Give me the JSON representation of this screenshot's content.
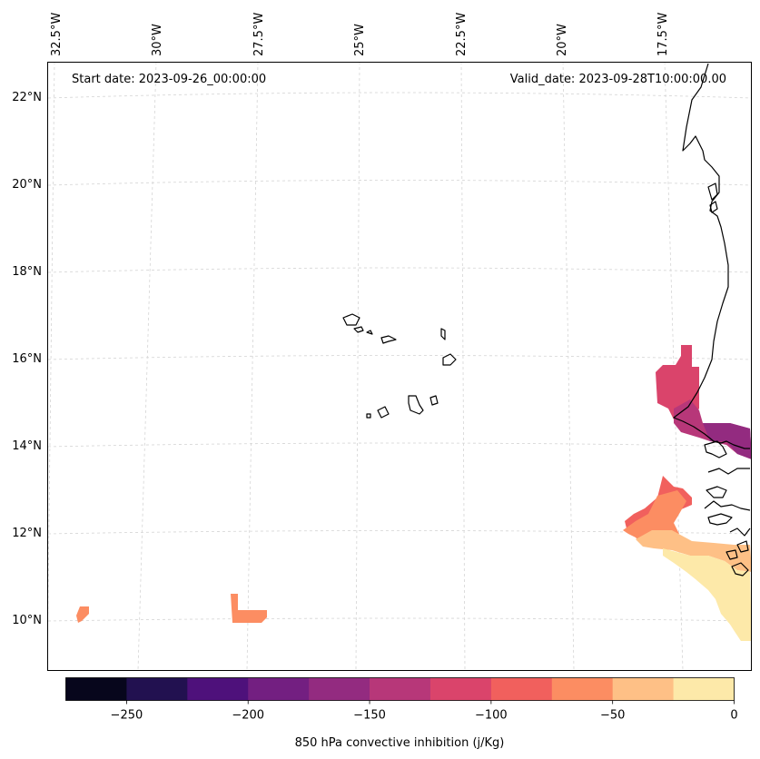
{
  "header": {
    "start_date": "Start date: 2023-09-26_00:00:00",
    "valid_date": "Valid_date: 2023-09-28T10:00:00.00"
  },
  "lon_labels": [
    "32.5°W",
    "30°W",
    "27.5°W",
    "25°W",
    "22.5°W",
    "20°W",
    "17.5°W"
  ],
  "lat_labels": [
    "22°N",
    "20°N",
    "18°N",
    "16°N",
    "14°N",
    "12°N",
    "10°N"
  ],
  "colorbar": {
    "label": "850 hPa convective inhibition (j/Kg)",
    "ticks": [
      "−250",
      "−200",
      "−150",
      "−100",
      "−50",
      "0"
    ],
    "tick_values": [
      -250,
      -200,
      -150,
      -100,
      -50,
      0
    ],
    "range": [
      -275,
      0
    ],
    "colors": [
      "#07061c",
      "#221150",
      "#4e117b",
      "#731f81",
      "#932b80",
      "#b73779",
      "#da446b",
      "#f1605d",
      "#fc8d62",
      "#fec086",
      "#fde9a9"
    ]
  },
  "map": {
    "region": "Cape Verde / West African coast",
    "field": "850 hPa convective inhibition",
    "gridlines": "dashed light grey"
  }
}
